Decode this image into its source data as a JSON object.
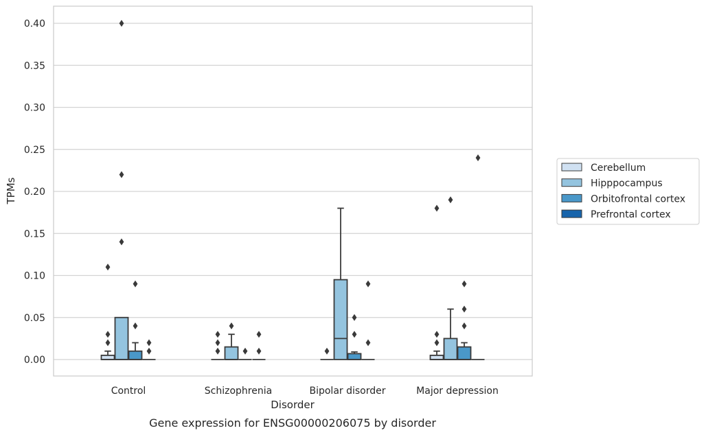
{
  "chart_data": {
    "type": "box",
    "title": "",
    "caption": "Gene expression for ENSG00000206075 by disorder",
    "xlabel": "Disorder",
    "ylabel": "TPMs",
    "ylim": [
      -0.02,
      0.42
    ],
    "yticks": [
      0.0,
      0.05,
      0.1,
      0.15,
      0.2,
      0.25,
      0.3,
      0.35,
      0.4
    ],
    "ytick_labels": [
      "0.00",
      "0.05",
      "0.10",
      "0.15",
      "0.20",
      "0.25",
      "0.30",
      "0.35",
      "0.40"
    ],
    "grid": "horizontal",
    "legend_position": "right",
    "categories": [
      "Control",
      "Schizophrenia",
      "Bipolar disorder",
      "Major depression"
    ],
    "series": [
      {
        "name": "Cerebellum",
        "color": "#d0e1f2",
        "boxes": [
          {
            "q1": 0.0,
            "median": 0.0,
            "q3": 0.005,
            "whisker_low": 0.0,
            "whisker_high": 0.01,
            "outliers": [
              0.02,
              0.03,
              0.11
            ]
          },
          {
            "q1": 0.0,
            "median": 0.0,
            "q3": 0.0,
            "whisker_low": 0.0,
            "whisker_high": 0.0,
            "outliers": [
              0.01,
              0.02,
              0.03
            ]
          },
          {
            "q1": 0.0,
            "median": 0.0,
            "q3": 0.0,
            "whisker_low": 0.0,
            "whisker_high": 0.0,
            "outliers": [
              0.01
            ]
          },
          {
            "q1": 0.0,
            "median": 0.0,
            "q3": 0.005,
            "whisker_low": 0.0,
            "whisker_high": 0.01,
            "outliers": [
              0.02,
              0.03,
              0.18
            ]
          }
        ]
      },
      {
        "name": "Hipppocampus",
        "color": "#94c4df",
        "boxes": [
          {
            "q1": 0.0,
            "median": 0.0,
            "q3": 0.05,
            "whisker_low": 0.0,
            "whisker_high": 0.05,
            "outliers": [
              0.14,
              0.22,
              0.4
            ]
          },
          {
            "q1": 0.0,
            "median": 0.0,
            "q3": 0.015,
            "whisker_low": 0.0,
            "whisker_high": 0.03,
            "outliers": [
              0.04
            ]
          },
          {
            "q1": 0.0,
            "median": 0.025,
            "q3": 0.095,
            "whisker_low": 0.0,
            "whisker_high": 0.18,
            "outliers": []
          },
          {
            "q1": 0.0,
            "median": 0.0,
            "q3": 0.025,
            "whisker_low": 0.0,
            "whisker_high": 0.06,
            "outliers": [
              0.19
            ]
          }
        ]
      },
      {
        "name": "Orbitofrontal cortex",
        "color": "#4a98c9",
        "boxes": [
          {
            "q1": 0.0,
            "median": 0.0,
            "q3": 0.01,
            "whisker_low": 0.0,
            "whisker_high": 0.02,
            "outliers": [
              0.04,
              0.09
            ]
          },
          {
            "q1": 0.0,
            "median": 0.0,
            "q3": 0.0,
            "whisker_low": 0.0,
            "whisker_high": 0.0,
            "outliers": [
              0.01
            ]
          },
          {
            "q1": 0.0,
            "median": 0.0,
            "q3": 0.007,
            "whisker_low": 0.0,
            "whisker_high": 0.009,
            "outliers": [
              0.03,
              0.05
            ]
          },
          {
            "q1": 0.0,
            "median": 0.0,
            "q3": 0.015,
            "whisker_low": 0.0,
            "whisker_high": 0.02,
            "outliers": [
              0.04,
              0.06,
              0.09
            ]
          }
        ]
      },
      {
        "name": "Prefrontal cortex",
        "color": "#1764ab",
        "boxes": [
          {
            "q1": 0.0,
            "median": 0.0,
            "q3": 0.0,
            "whisker_low": 0.0,
            "whisker_high": 0.0,
            "outliers": [
              0.01,
              0.02
            ]
          },
          {
            "q1": 0.0,
            "median": 0.0,
            "q3": 0.0,
            "whisker_low": 0.0,
            "whisker_high": 0.0,
            "outliers": [
              0.01,
              0.03
            ]
          },
          {
            "q1": 0.0,
            "median": 0.0,
            "q3": 0.0,
            "whisker_low": 0.0,
            "whisker_high": 0.0,
            "outliers": [
              0.02,
              0.09
            ]
          },
          {
            "q1": 0.0,
            "median": 0.0,
            "q3": 0.0,
            "whisker_low": 0.0,
            "whisker_high": 0.0,
            "outliers": [
              0.24
            ]
          }
        ]
      }
    ]
  }
}
